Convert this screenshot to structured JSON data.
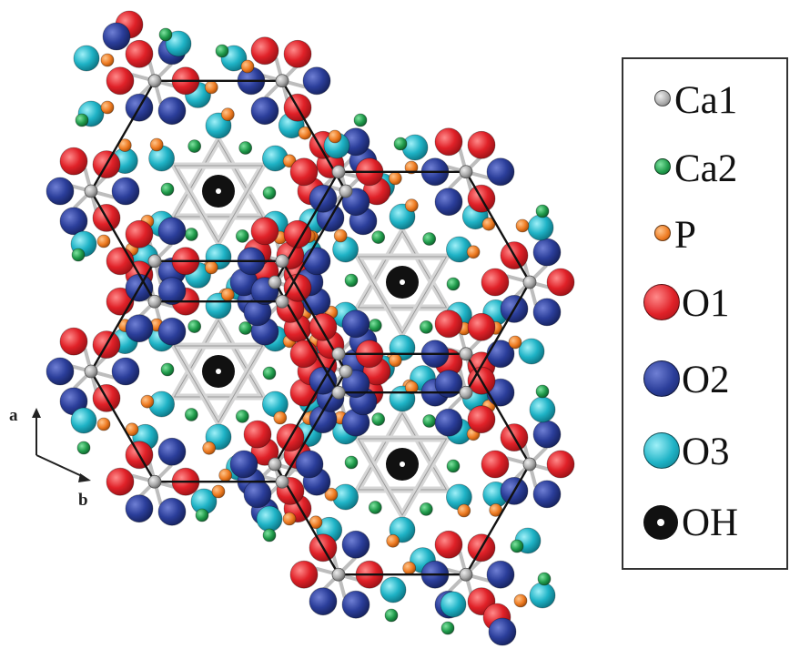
{
  "diagram": {
    "axes": {
      "a_label": "a",
      "b_label": "b"
    },
    "atom_colors": {
      "Ca1": "#a9a9a9",
      "Ca2": "#1f9a4a",
      "P": "#ee7b22",
      "O1": "#e02128",
      "O2": "#2b3e9a",
      "O3": "#1fb3c6",
      "OH": "#111111"
    }
  },
  "legend": {
    "items": [
      {
        "key": "Ca1",
        "label": "Ca1",
        "color": "#a9a9a9"
      },
      {
        "key": "Ca2",
        "label": "Ca2",
        "color": "#1f9a4a"
      },
      {
        "key": "P",
        "label": "P",
        "color": "#ee7b22"
      },
      {
        "key": "O1",
        "label": "O1",
        "color": "#e02128"
      },
      {
        "key": "O2",
        "label": "O2",
        "color": "#2b3e9a"
      },
      {
        "key": "O3",
        "label": "O3",
        "color": "#1fb3c6"
      },
      {
        "key": "OH",
        "label": "OH",
        "color": "#111111"
      }
    ]
  }
}
